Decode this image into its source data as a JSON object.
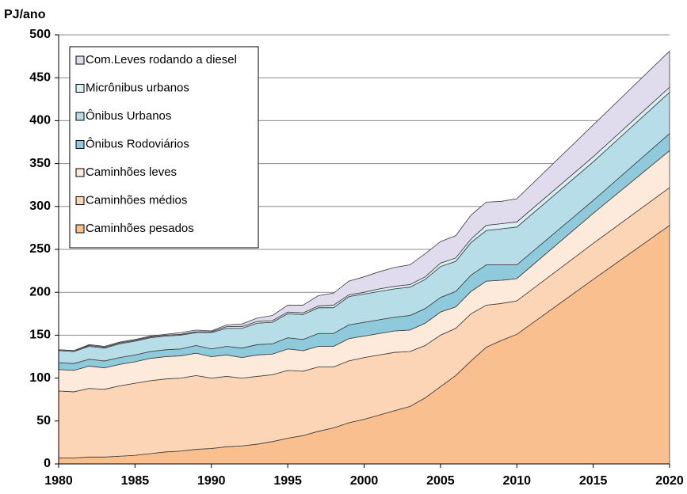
{
  "chart_data": {
    "type": "stacked_area",
    "ylabel": "PJ/ano",
    "x": [
      1980,
      1981,
      1982,
      1983,
      1984,
      1985,
      1986,
      1987,
      1988,
      1989,
      1990,
      1991,
      1992,
      1993,
      1994,
      1995,
      1996,
      1997,
      1998,
      1999,
      2000,
      2001,
      2002,
      2003,
      2004,
      2005,
      2006,
      2007,
      2008,
      2009,
      2010,
      2015,
      2020
    ],
    "xlim": [
      1980,
      2020
    ],
    "xticks": [
      1980,
      1985,
      1990,
      1995,
      2000,
      2005,
      2010,
      2015,
      2020
    ],
    "ylim": [
      0,
      500
    ],
    "yticks": [
      0,
      50,
      100,
      150,
      200,
      250,
      300,
      350,
      400,
      450,
      500
    ],
    "grid": true,
    "legend": "upper left",
    "series": [
      {
        "name": "Caminhões pesados",
        "color": "#f9bf8f",
        "values": [
          7,
          7,
          8,
          8,
          9,
          10,
          12,
          14,
          15,
          17,
          18,
          20,
          21,
          23,
          26,
          30,
          33,
          38,
          42,
          48,
          52,
          57,
          62,
          67,
          77,
          90,
          103,
          120,
          136,
          144,
          151,
          215,
          278
        ]
      },
      {
        "name": "Caminhões médios",
        "color": "#fbd5b5",
        "values": [
          78,
          77,
          80,
          79,
          82,
          84,
          85,
          85,
          85,
          86,
          82,
          82,
          79,
          79,
          78,
          79,
          75,
          75,
          71,
          72,
          72,
          70,
          68,
          64,
          61,
          60,
          55,
          55,
          49,
          43,
          39,
          42,
          44
        ]
      },
      {
        "name": "Caminhões leves",
        "color": "#fdeada",
        "values": [
          25,
          25,
          26,
          25,
          25,
          25,
          26,
          26,
          26,
          26,
          25,
          25,
          24,
          25,
          24,
          25,
          24,
          24,
          24,
          26,
          25,
          25,
          25,
          25,
          26,
          27,
          25,
          26,
          28,
          27,
          26,
          35,
          43
        ]
      },
      {
        "name": "Ônibus Rodoviários",
        "color": "#8ecadb",
        "values": [
          8,
          8,
          8,
          8,
          8,
          8,
          8,
          8,
          8,
          9,
          9,
          10,
          11,
          12,
          12,
          13,
          13,
          15,
          15,
          16,
          16,
          16,
          16,
          17,
          17,
          17,
          18,
          19,
          19,
          18,
          16,
          15,
          20
        ]
      },
      {
        "name": "Ônibus Urbanos",
        "color": "#b7dee8",
        "values": [
          14,
          14,
          15,
          15,
          16,
          16,
          16,
          16,
          16,
          15,
          19,
          21,
          23,
          25,
          25,
          28,
          29,
          30,
          30,
          33,
          33,
          33,
          33,
          33,
          34,
          36,
          35,
          38,
          40,
          42,
          44,
          45,
          48
        ]
      },
      {
        "name": "Micrônibus urbanos",
        "color": "#dbeef4",
        "values": [
          1,
          1,
          1,
          1,
          1,
          1,
          1,
          1,
          1,
          1,
          1,
          2,
          2,
          2,
          2,
          2,
          2,
          2,
          3,
          2,
          2,
          3,
          3,
          3,
          3,
          4,
          4,
          4,
          6,
          6,
          6,
          6,
          6
        ]
      },
      {
        "name": "Com.Leves rodando a diesel",
        "color": "#e1dced",
        "values": [
          0,
          0,
          1,
          1,
          1,
          1,
          1,
          1,
          2,
          2,
          1,
          2,
          3,
          4,
          6,
          8,
          9,
          12,
          14,
          16,
          18,
          20,
          22,
          23,
          27,
          25,
          26,
          28,
          27,
          26,
          27,
          37,
          42
        ]
      }
    ]
  }
}
